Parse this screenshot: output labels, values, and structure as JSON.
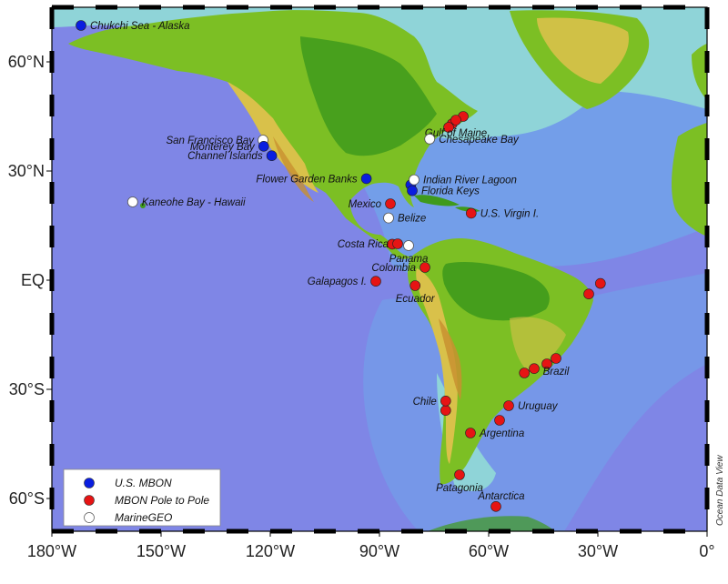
{
  "credit": "Ocean Data View",
  "axes": {
    "lon_ticks": [
      {
        "lon": -180,
        "label": "180°W"
      },
      {
        "lon": -150,
        "label": "150°W"
      },
      {
        "lon": -120,
        "label": "120°W"
      },
      {
        "lon": -90,
        "label": "90°W"
      },
      {
        "lon": -60,
        "label": "60°W"
      },
      {
        "lon": -30,
        "label": "30°W"
      },
      {
        "lon": 0,
        "label": "0°"
      }
    ],
    "lat_ticks": [
      {
        "lat": 60,
        "label": "60°N"
      },
      {
        "lat": 30,
        "label": "30°N"
      },
      {
        "lat": 0,
        "label": "EQ"
      },
      {
        "lat": -30,
        "label": "30°S"
      },
      {
        "lat": -60,
        "label": "60°S"
      }
    ]
  },
  "colors": {
    "ocean_deep": "#7f86e6",
    "ocean_mid": "#6fa6ea",
    "ocean_shelf": "#8fd4d8",
    "land_low": "#3f9a1c",
    "land_mid": "#7cbf24",
    "land_high": "#d9c14a",
    "land_peak": "#c89030",
    "us_mbon": "#0a1ee0",
    "pole_to_pole": "#e61414",
    "marinegeo": "#ffffff"
  },
  "legend": {
    "items": [
      {
        "key": "us_mbon",
        "label": "U.S. MBON"
      },
      {
        "key": "pole_to_pole",
        "label": "MBON Pole to Pole"
      },
      {
        "key": "marinegeo",
        "label": "MarineGEO"
      }
    ]
  },
  "sites": [
    {
      "name": "Chukchi Sea - Alaska",
      "lon": -172,
      "lat": 70,
      "network": "us_mbon",
      "label_side": "right"
    },
    {
      "name": "San Francisco Bay",
      "lon": -122,
      "lat": 38.5,
      "network": "marinegeo",
      "label_side": "left"
    },
    {
      "name": "Monterey Bay",
      "lon": -121.8,
      "lat": 36.8,
      "network": "us_mbon",
      "label_side": "left"
    },
    {
      "name": "Channel Islands",
      "lon": -119.6,
      "lat": 34.2,
      "network": "us_mbon",
      "label_side": "left"
    },
    {
      "name": "Flower Garden Banks",
      "lon": -93.6,
      "lat": 27.9,
      "network": "us_mbon",
      "label_side": "left"
    },
    {
      "name": "Kaneohe Bay - Hawaii",
      "lon": -157.8,
      "lat": 21.5,
      "network": "marinegeo",
      "label_side": "right"
    },
    {
      "name": "Gulf of Maine",
      "lon": -69,
      "lat": 44,
      "network": "pole_to_pole",
      "label_side": "below"
    },
    {
      "name": "Chesapeake Bay",
      "lon": -76.2,
      "lat": 38.8,
      "network": "marinegeo",
      "label_side": "right"
    },
    {
      "name": "Indian River Lagoon",
      "lon": -80.5,
      "lat": 27.6,
      "network": "marinegeo",
      "label_side": "right"
    },
    {
      "name": "Florida Keys",
      "lon": -81,
      "lat": 24.6,
      "network": "us_mbon",
      "label_side": "right"
    },
    {
      "name": "Mexico",
      "lon": -87,
      "lat": 21,
      "network": "pole_to_pole",
      "label_side": "left"
    },
    {
      "name": "Belize",
      "lon": -87.5,
      "lat": 17.1,
      "network": "marinegeo",
      "label_side": "right"
    },
    {
      "name": "U.S. Virgin I.",
      "lon": -64.8,
      "lat": 18.4,
      "network": "pole_to_pole",
      "label_side": "right"
    },
    {
      "name": "Costa Rica",
      "lon": -85,
      "lat": 10,
      "network": "pole_to_pole",
      "label_side": "left"
    },
    {
      "name": "Panama",
      "lon": -82,
      "lat": 9.5,
      "network": "marinegeo",
      "label_side": "below"
    },
    {
      "name": "Colombia",
      "lon": -77.5,
      "lat": 3.5,
      "network": "pole_to_pole",
      "label_side": "left"
    },
    {
      "name": "Galapagos I.",
      "lon": -91,
      "lat": -0.3,
      "network": "pole_to_pole",
      "label_side": "left"
    },
    {
      "name": "Ecuador",
      "lon": -80.2,
      "lat": -1.5,
      "network": "pole_to_pole",
      "label_side": "below"
    },
    {
      "name": "Brazil",
      "lon": -41.5,
      "lat": -21.5,
      "network": "pole_to_pole",
      "label_side": "below"
    },
    {
      "name": "Chile",
      "lon": -71.8,
      "lat": -33.2,
      "network": "pole_to_pole",
      "label_side": "left"
    },
    {
      "name": "Uruguay",
      "lon": -54.5,
      "lat": -34.5,
      "network": "pole_to_pole",
      "label_side": "right"
    },
    {
      "name": "Argentina",
      "lon": -65,
      "lat": -42,
      "network": "pole_to_pole",
      "label_side": "right"
    },
    {
      "name": "Patagonia",
      "lon": -68,
      "lat": -53.5,
      "network": "pole_to_pole",
      "label_side": "below"
    },
    {
      "name": "Antarctica",
      "lon": -58,
      "lat": -62.2,
      "network": "pole_to_pole",
      "label_side": "above"
    }
  ],
  "extra_markers": [
    {
      "lon": -67,
      "lat": 45,
      "network": "pole_to_pole"
    },
    {
      "lon": -70,
      "lat": 43,
      "network": "pole_to_pole"
    },
    {
      "lon": -71,
      "lat": 42,
      "network": "pole_to_pole"
    },
    {
      "lon": -81.4,
      "lat": 26.2,
      "network": "us_mbon"
    },
    {
      "lon": -86.5,
      "lat": 9.9,
      "network": "pole_to_pole"
    },
    {
      "lon": -32.5,
      "lat": -3.8,
      "network": "pole_to_pole"
    },
    {
      "lon": -29.3,
      "lat": -0.9,
      "network": "pole_to_pole"
    },
    {
      "lon": -44,
      "lat": -23,
      "network": "pole_to_pole"
    },
    {
      "lon": -47.5,
      "lat": -24.3,
      "network": "pole_to_pole"
    },
    {
      "lon": -50.2,
      "lat": -25.5,
      "network": "pole_to_pole"
    },
    {
      "lon": -57,
      "lat": -38.5,
      "network": "pole_to_pole"
    },
    {
      "lon": -71.8,
      "lat": -35.8,
      "network": "pole_to_pole"
    }
  ]
}
